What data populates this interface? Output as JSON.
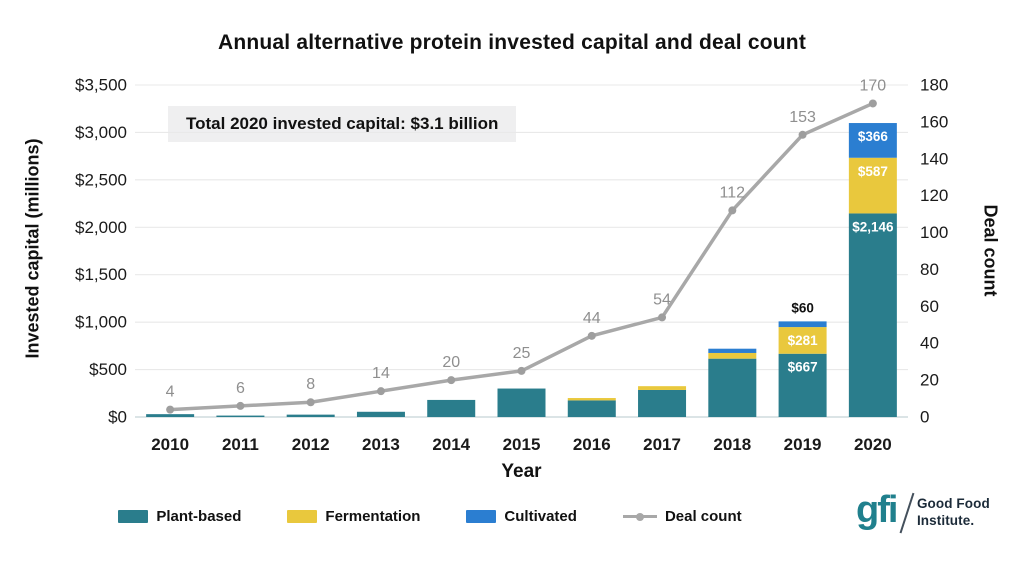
{
  "title": "Annual alternative protein invested capital and deal count",
  "annotation": "Total 2020 invested capital: $3.1 billion",
  "axes": {
    "left_title": "Invested capital (millions)",
    "left_ticks": [
      "$3,500",
      "$3,000",
      "$2,500",
      "$2,000",
      "$1,500",
      "$1,000",
      "$500",
      "$0"
    ],
    "right_title": "Deal count",
    "right_ticks": [
      "180",
      "160",
      "140",
      "120",
      "100",
      "80",
      "60",
      "40",
      "20",
      "0"
    ],
    "x_title": "Year"
  },
  "chart_data": {
    "type": "bar",
    "subtype": "stacked bars with overlaid line",
    "categories": [
      "2010",
      "2011",
      "2012",
      "2013",
      "2014",
      "2015",
      "2016",
      "2017",
      "2018",
      "2019",
      "2020"
    ],
    "ylim_left": [
      0,
      3500
    ],
    "ylim_right": [
      0,
      180
    ],
    "grid": "horizontal",
    "series": [
      {
        "name": "Plant-based",
        "type": "bar",
        "color": "#2a7d8c",
        "values": [
          30,
          15,
          25,
          55,
          180,
          300,
          175,
          285,
          615,
          667,
          2146
        ],
        "labels": [
          null,
          null,
          null,
          null,
          null,
          null,
          null,
          null,
          null,
          "$667",
          "$2,146"
        ]
      },
      {
        "name": "Fermentation",
        "type": "bar",
        "color": "#e9c83d",
        "values": [
          0,
          0,
          0,
          0,
          0,
          0,
          25,
          40,
          60,
          281,
          587
        ],
        "labels": [
          null,
          null,
          null,
          null,
          null,
          null,
          null,
          null,
          null,
          "$281",
          "$587"
        ]
      },
      {
        "name": "Cultivated",
        "type": "bar",
        "color": "#2b7ed1",
        "values": [
          0,
          0,
          0,
          0,
          0,
          0,
          0,
          0,
          45,
          60,
          366
        ],
        "labels": [
          null,
          null,
          null,
          null,
          null,
          null,
          null,
          null,
          null,
          "$60",
          "$366"
        ],
        "label_outside_indices": [
          9
        ]
      },
      {
        "name": "Deal count",
        "type": "line",
        "color": "#a8a8a8",
        "marker_color": "#9e9e9e",
        "values": [
          4,
          6,
          8,
          14,
          20,
          25,
          44,
          54,
          112,
          153,
          170
        ],
        "point_labels": [
          "4",
          "6",
          "8",
          "14",
          "20",
          "25",
          "44",
          "54",
          "112",
          "153",
          "170"
        ]
      }
    ]
  },
  "legend": [
    {
      "label": "Plant-based",
      "color": "#2a7d8c",
      "type": "swatch"
    },
    {
      "label": "Fermentation",
      "color": "#e9c83d",
      "type": "swatch"
    },
    {
      "label": "Cultivated",
      "color": "#2b7ed1",
      "type": "swatch"
    },
    {
      "label": "Deal count",
      "color": "#a8a8a8",
      "type": "line"
    }
  ],
  "logo": {
    "mark": "gfi",
    "name_line1": "Good Food",
    "name_line2": "Institute."
  },
  "colors": {
    "background": "#ffffff",
    "gridline": "#e9e9e9",
    "baseline": "#cfdcde",
    "deal_point_label": "#8f8f8f",
    "bar_value_label": "#ffffff",
    "outside_value_label": "#111111",
    "annotation_bg": "#efeff0",
    "logo_teal": "#20808d",
    "logo_text": "#1c2b39"
  }
}
